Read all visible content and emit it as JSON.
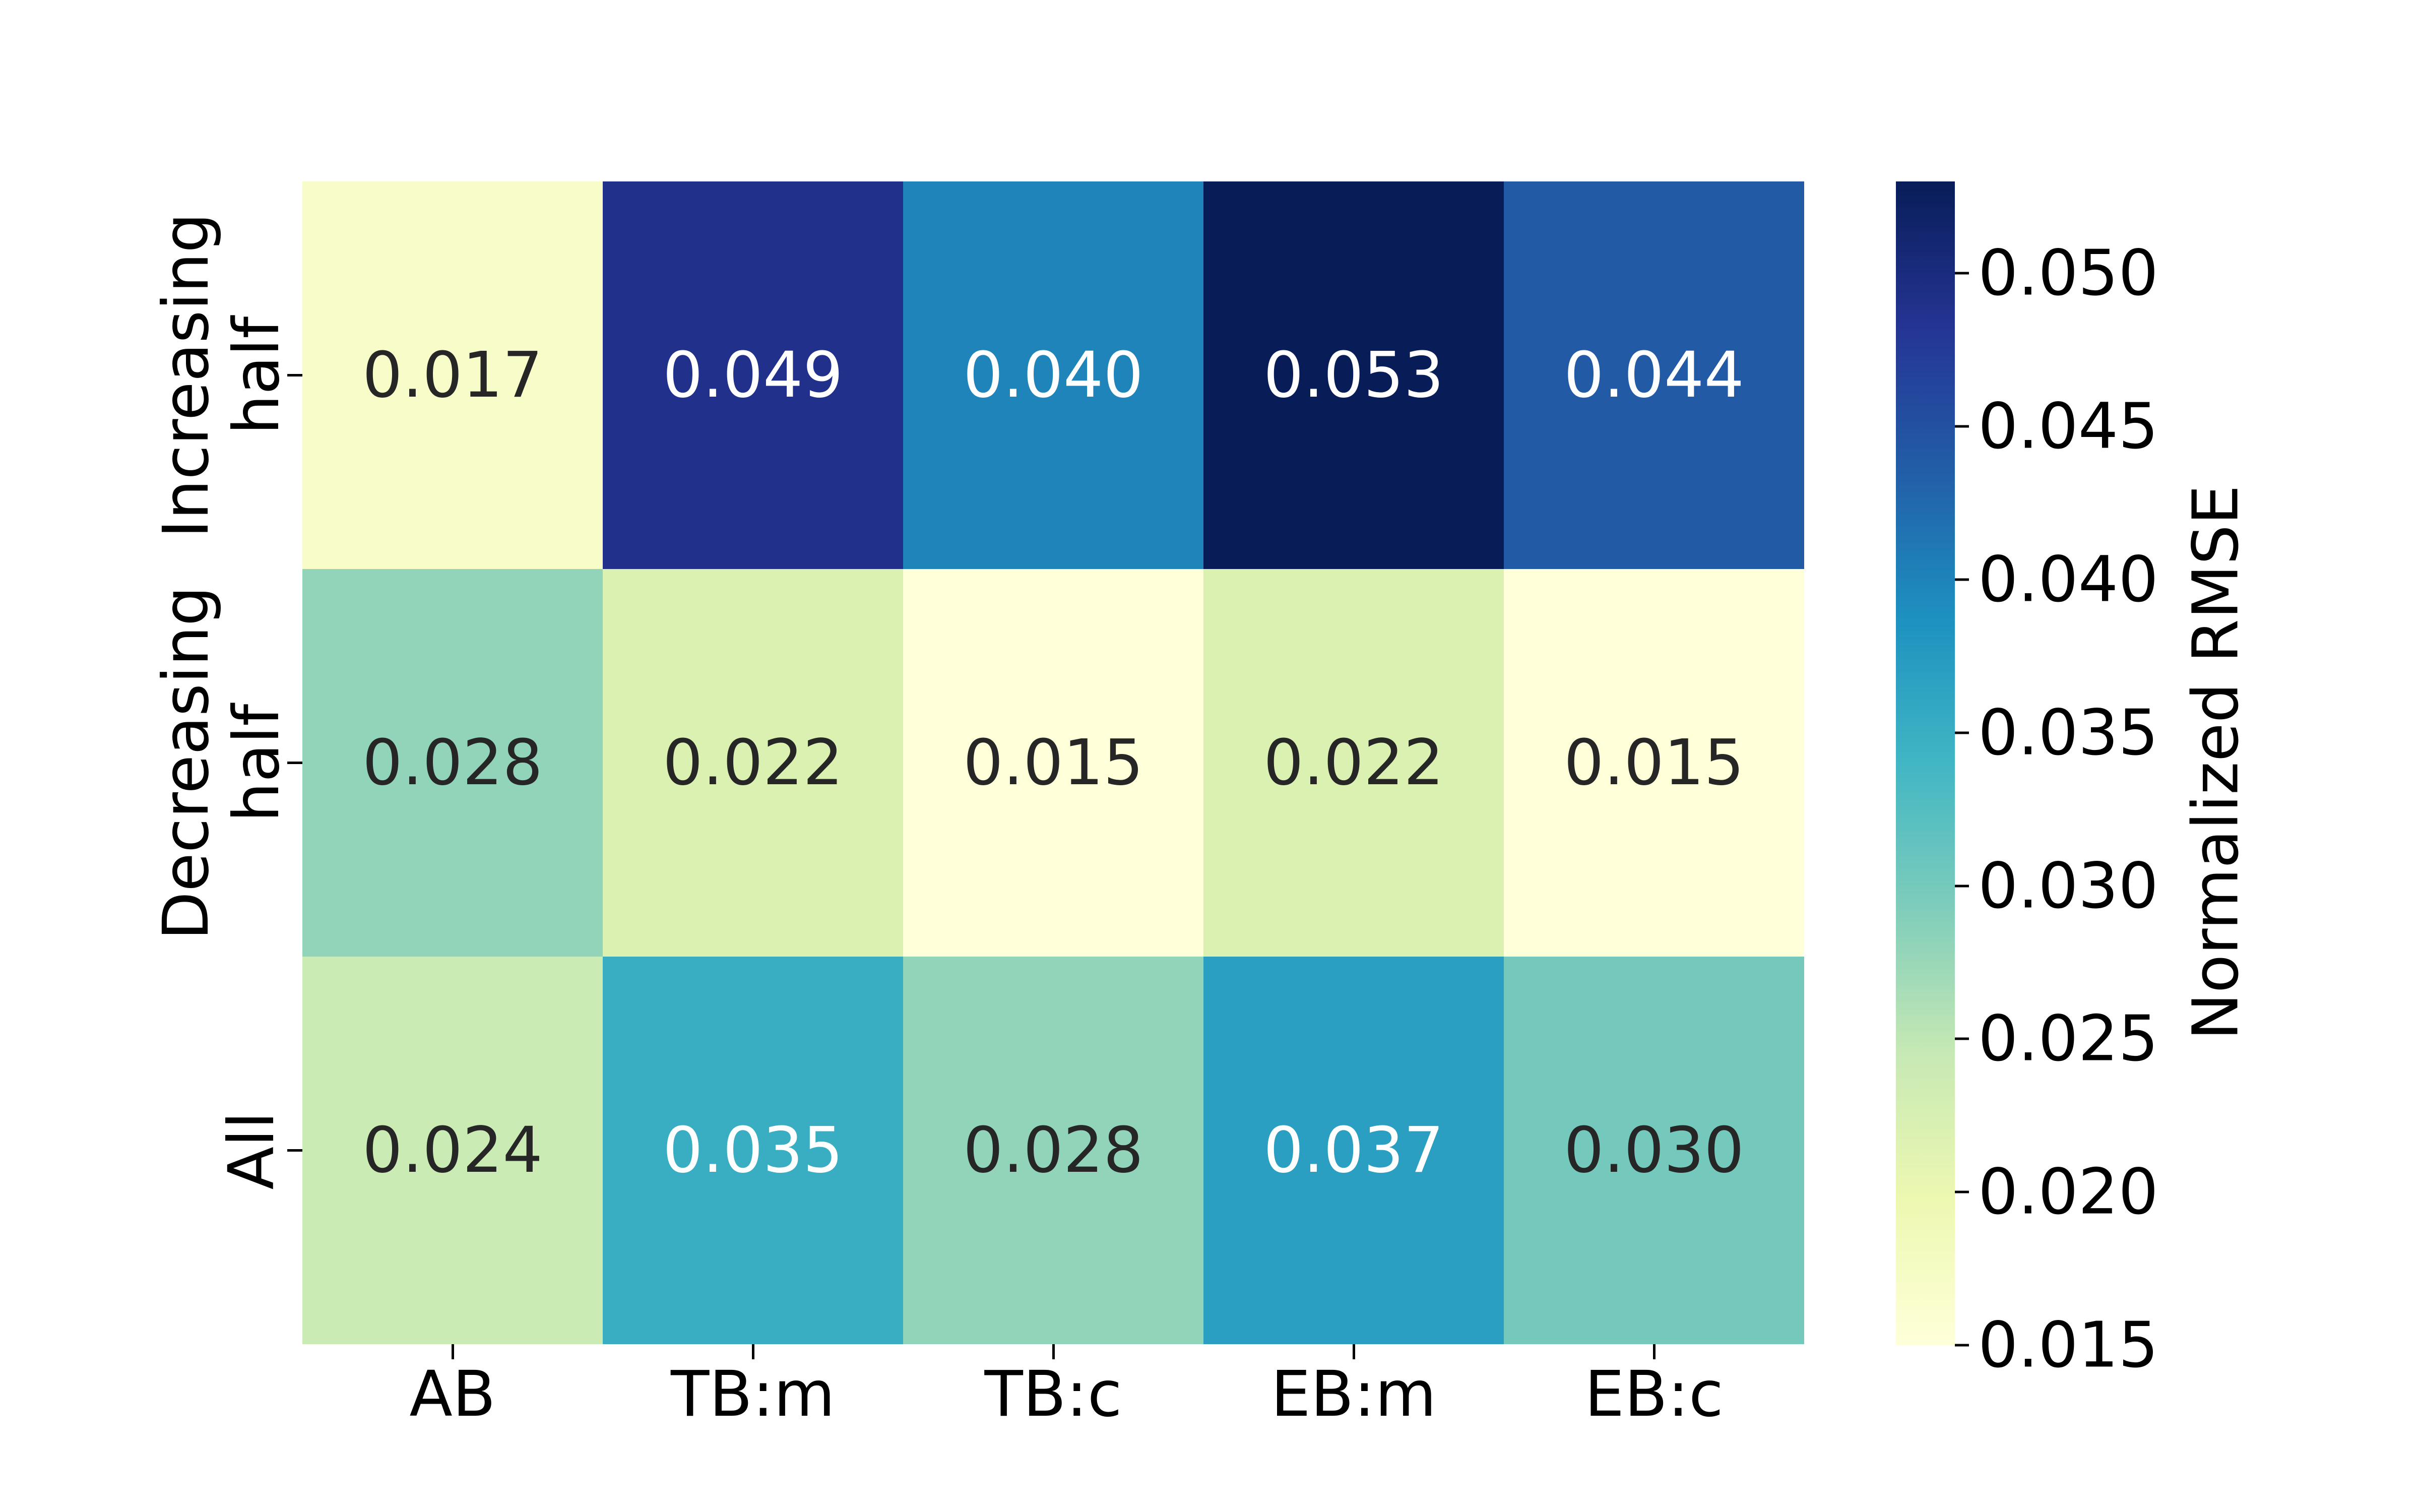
{
  "figure": {
    "background": "#ffffff"
  },
  "chart_data": {
    "type": "heatmap",
    "x_categories": [
      "AB",
      "TB:m",
      "TB:c",
      "EB:m",
      "EB:c"
    ],
    "y_categories": [
      "Increasing\nhalf",
      "Decreasing\nhalf",
      "All"
    ],
    "values": [
      [
        0.017,
        0.049,
        0.04,
        0.053,
        0.044
      ],
      [
        0.028,
        0.022,
        0.015,
        0.022,
        0.015
      ],
      [
        0.024,
        0.035,
        0.028,
        0.037,
        0.03
      ]
    ],
    "value_format_decimals": 3,
    "vmin": 0.015,
    "vmax": 0.053,
    "colormap_name": "YlGnBu",
    "colormap_stops": [
      "#ffffd9",
      "#edf8b1",
      "#c7e9b4",
      "#7fcdbb",
      "#41b6c4",
      "#1d91c0",
      "#225ea8",
      "#253494",
      "#081d58"
    ],
    "annotation_dark_color": "#262626",
    "annotation_light_color": "#ffffff",
    "axis_text_color": "#000000",
    "grid": false,
    "colorbar": {
      "label": "Normalized RMSE",
      "ticks": [
        0.015,
        0.02,
        0.025,
        0.03,
        0.035,
        0.04,
        0.045,
        0.05
      ]
    }
  }
}
